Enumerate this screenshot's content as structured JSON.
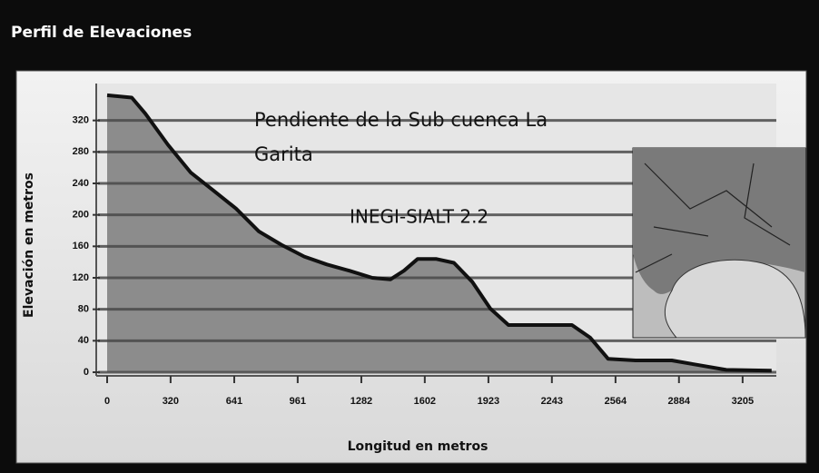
{
  "window": {
    "title": "Perfil de Elevaciones"
  },
  "chart_data": {
    "type": "area",
    "annotations": [
      "Pendiente de la Sub cuenca La",
      "Garita",
      "INEGI-SIALT 2.2"
    ],
    "xlabel": "Longitud en metros",
    "ylabel": "Elevación en metros",
    "x": [
      0,
      124,
      192,
      307,
      421,
      536,
      650,
      765,
      879,
      994,
      1108,
      1222,
      1337,
      1429,
      1497,
      1566,
      1658,
      1749,
      1841,
      1932,
      2024,
      2161,
      2344,
      2436,
      2527,
      2665,
      2848,
      2985,
      3122,
      3351
    ],
    "values": [
      352,
      349,
      329,
      289,
      254,
      231,
      208,
      179,
      162,
      147,
      137,
      129,
      120,
      118,
      129,
      144,
      144,
      139,
      115,
      81,
      60,
      60,
      60,
      44,
      17,
      15,
      15,
      9,
      3,
      2
    ],
    "color": "#8c8c8c",
    "line_color": "#111111",
    "xlim": [
      0,
      3375
    ],
    "ylim": [
      0,
      360
    ],
    "xticks": [
      0,
      320,
      641,
      961,
      1282,
      1602,
      1923,
      2243,
      2564,
      2884,
      3205
    ],
    "yticks": [
      0,
      40,
      80,
      120,
      160,
      200,
      240,
      280,
      320
    ],
    "grid": true
  }
}
